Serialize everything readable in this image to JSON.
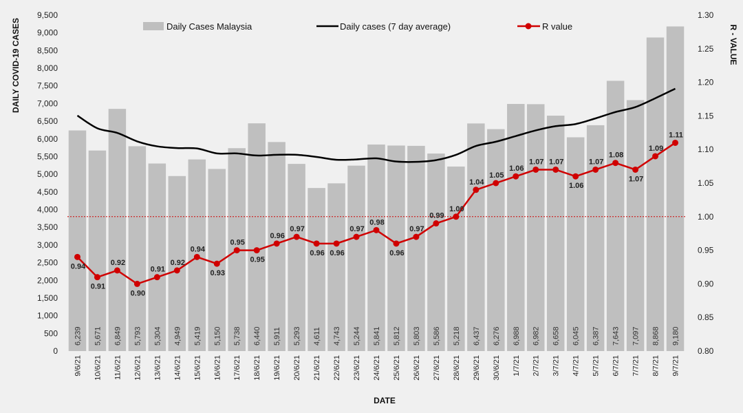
{
  "chart_data": {
    "type": "bar",
    "categories": [
      "9/6/21",
      "10/6/21",
      "11/6/21",
      "12/6/21",
      "13/6/21",
      "14/6/21",
      "15/6/21",
      "16/6/21",
      "17/6/21",
      "18/6/21",
      "19/6/21",
      "20/6/21",
      "21/6/21",
      "22/6/21",
      "23/6/21",
      "24/6/21",
      "25/6/21",
      "26/6/21",
      "27/6/21",
      "28/6/21",
      "29/6/21",
      "30/6/21",
      "1/7/21",
      "2/7/21",
      "3/7/21",
      "4/7/21",
      "5/7/21",
      "6/7/21",
      "7/7/21",
      "8/7/21",
      "9/7/21"
    ],
    "series": [
      {
        "name": "Daily Cases Malaysia",
        "type": "bar",
        "axis": "left",
        "color": "#bfbfbf",
        "values": [
          6239,
          5671,
          6849,
          5793,
          5304,
          4949,
          5419,
          5150,
          5738,
          6440,
          5911,
          5293,
          4611,
          4743,
          5244,
          5841,
          5812,
          5803,
          5586,
          5218,
          6437,
          6276,
          6988,
          6982,
          6658,
          6045,
          6387,
          7643,
          7097,
          8868,
          9180
        ],
        "labels": [
          "6,239",
          "5,671",
          "6,849",
          "5,793",
          "5,304",
          "4,949",
          "5,419",
          "5,150",
          "5,738",
          "6,440",
          "5,911",
          "5,293",
          "4,611",
          "4,743",
          "5,244",
          "5,841",
          "5,812",
          "5,803",
          "5,586",
          "5,218",
          "6,437",
          "6,276",
          "6,988",
          "6,982",
          "6,658",
          "6,045",
          "6,387",
          "7,643",
          "7,097",
          "8,868",
          "9,180"
        ]
      },
      {
        "name": "Daily cases (7 day average)",
        "type": "line",
        "axis": "left",
        "color": "#000000",
        "values": [
          6660,
          6300,
          6170,
          5930,
          5790,
          5740,
          5730,
          5590,
          5590,
          5530,
          5550,
          5550,
          5490,
          5410,
          5420,
          5450,
          5360,
          5350,
          5400,
          5550,
          5800,
          5920,
          6080,
          6240,
          6360,
          6420,
          6580,
          6760,
          6900,
          7150,
          7420
        ]
      },
      {
        "name": "R value",
        "type": "line",
        "axis": "right",
        "color": "#d00000",
        "values": [
          0.94,
          0.91,
          0.92,
          0.9,
          0.91,
          0.92,
          0.94,
          0.93,
          0.95,
          0.95,
          0.96,
          0.97,
          0.96,
          0.96,
          0.97,
          0.98,
          0.96,
          0.97,
          0.99,
          1.0,
          1.04,
          1.05,
          1.06,
          1.07,
          1.07,
          1.06,
          1.07,
          1.08,
          1.07,
          1.09,
          1.11
        ],
        "labels": [
          "0.94",
          "0.91",
          "0.92",
          "0.90",
          "0.91",
          "0.92",
          "0.94",
          "0.93",
          "0.95",
          "0.95",
          "0.96",
          "0.97",
          "0.96",
          "0.96",
          "0.97",
          "0.98",
          "0.96",
          "0.97",
          "0.99",
          "1.00",
          "1.04",
          "1.05",
          "1.06",
          "1.07",
          "1.07",
          "1.06",
          "1.07",
          "1.08",
          "1.07",
          "1.09",
          "1.11"
        ]
      }
    ],
    "reference_line": {
      "axis": "right",
      "value": 1.0,
      "color": "#d00000",
      "style": "dotted"
    },
    "xlabel": "DATE",
    "ylabel": "DAILY COVID-19 CASES",
    "y2label": "R - VALUE",
    "ylim": [
      0,
      9500
    ],
    "y2lim": [
      0.8,
      1.3
    ],
    "yticks": [
      "0",
      "500",
      "1,000",
      "1,500",
      "2,000",
      "2,500",
      "3,000",
      "3,500",
      "4,000",
      "4,500",
      "5,000",
      "5,500",
      "6,000",
      "6,500",
      "7,000",
      "7,500",
      "8,000",
      "8,500",
      "9,000",
      "9,500"
    ],
    "y2ticks": [
      "0.80",
      "0.85",
      "0.90",
      "0.95",
      "1.00",
      "1.05",
      "1.10",
      "1.15",
      "1.20",
      "1.25",
      "1.30"
    ],
    "legend_position": "top",
    "grid": false,
    "background": "#f0f0f0"
  }
}
